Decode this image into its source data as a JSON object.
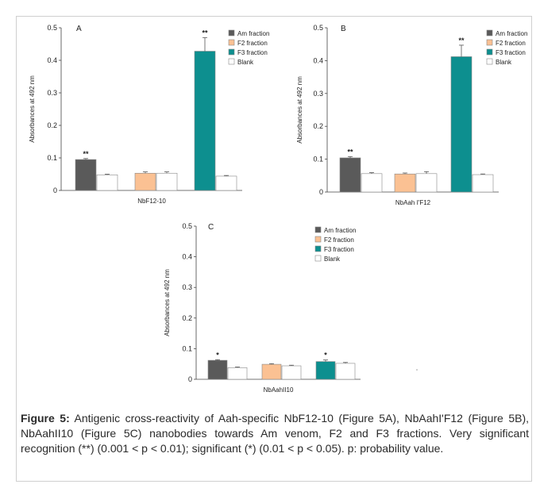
{
  "chart_data": [
    {
      "type": "bar",
      "panel": "A",
      "xlabel": "NbF12-10",
      "ylabel": "Absorbances at 492 nm",
      "ylim": [
        0,
        0.5
      ],
      "yticks": [
        "0",
        "0.1",
        "0.2",
        "0.3",
        "0.4",
        "0.5"
      ],
      "series": [
        {
          "name": "Am fraction",
          "value": 0.095,
          "error": 0.003,
          "sig": "**"
        },
        {
          "name": "F2 fraction",
          "value": 0.053,
          "error": 0.004,
          "sig": ""
        },
        {
          "name": "F3 fraction",
          "value": 0.428,
          "error": 0.042,
          "sig": "**"
        }
      ],
      "blanks": [
        0.048,
        0.053,
        0.044
      ],
      "blank_errors": [
        0.002,
        0.004,
        0.002
      ],
      "legend": [
        "Am fraction",
        "F2 fraction",
        "F3 fraction",
        "Blank"
      ],
      "legend_position": "top-right"
    },
    {
      "type": "bar",
      "panel": "B",
      "xlabel": "NbAah I'F12",
      "ylabel": "Absorbances at 492 nm",
      "ylim": [
        0,
        0.5
      ],
      "yticks": [
        "0",
        "0.1",
        "0.2",
        "0.3",
        "0.4",
        "0.5"
      ],
      "series": [
        {
          "name": "Am fraction",
          "value": 0.104,
          "error": 0.004,
          "sig": "**"
        },
        {
          "name": "F2 fraction",
          "value": 0.055,
          "error": 0.003,
          "sig": ""
        },
        {
          "name": "F3 fraction",
          "value": 0.412,
          "error": 0.035,
          "sig": "**"
        }
      ],
      "blanks": [
        0.056,
        0.056,
        0.053
      ],
      "blank_errors": [
        0.003,
        0.006,
        0.002
      ],
      "legend": [
        "Am fraction",
        "F2 fraction",
        "F3 fraction",
        "Blank"
      ],
      "legend_position": "top-right"
    },
    {
      "type": "bar",
      "panel": "C",
      "xlabel": "NbAahII10",
      "ylabel": "Absorbances at 492 nm",
      "ylim": [
        0,
        0.5
      ],
      "yticks": [
        "0",
        "0.1",
        "0.2",
        "0.3",
        "0.4",
        "0.5"
      ],
      "series": [
        {
          "name": "Am fraction",
          "value": 0.062,
          "error": 0.002,
          "sig": "*"
        },
        {
          "name": "F2 fraction",
          "value": 0.049,
          "error": 0.002,
          "sig": ""
        },
        {
          "name": "F3 fraction",
          "value": 0.058,
          "error": 0.005,
          "sig": "*"
        }
      ],
      "blanks": [
        0.038,
        0.044,
        0.052
      ],
      "blank_errors": [
        0.002,
        0.002,
        0.003
      ],
      "legend": [
        "Am fraction",
        "F2 fraction",
        "F3 fraction",
        "Blank"
      ],
      "legend_position": "top-right"
    }
  ],
  "colors": {
    "am": "#5a5a5a",
    "f2": "#fbc193",
    "f3": "#0d8f8f",
    "blank": "#ffffff"
  },
  "caption": {
    "label": "Figure 5:",
    "text": " Antigenic cross-reactivity of Aah-specific NbF12-10 (Figure 5A), NbAahI'F12 (Figure 5B), NbAahII10 (Figure 5C) nanobodies towards Am venom, F2 and F3 fractions. Very significant recognition (**) (0.001 < p < 0.01); significant (*) (0.01 < p < 0.05). p: probability value."
  }
}
